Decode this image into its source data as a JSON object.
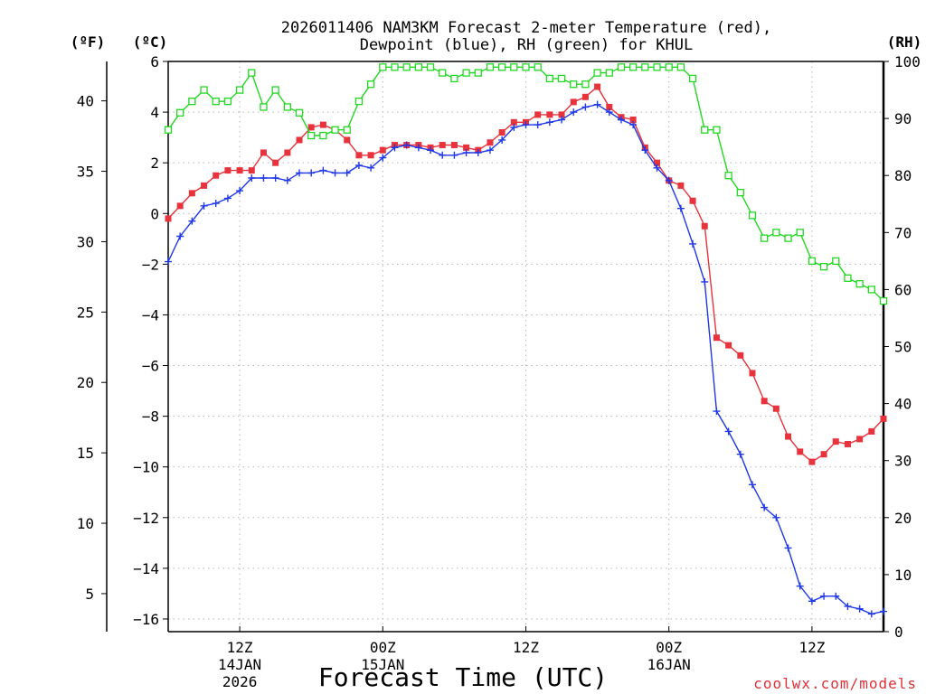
{
  "chart_data": {
    "type": "line",
    "title_line1": "2026011406 NAM3KM Forecast 2-meter Temperature (red),",
    "title_line2": "Dewpoint (blue), RH (green) for KHUL",
    "xlabel": "Forecast Time (UTC)",
    "credit": "coolwx.com/models",
    "units": {
      "fahrenheit": "(ºF)",
      "celsius": "(ºC)",
      "rh": "(RH)"
    },
    "x_range_hours": [
      0,
      60
    ],
    "x_ticks": [
      {
        "hour": 6,
        "line1": "12Z",
        "line2": "14JAN",
        "line3": "2026"
      },
      {
        "hour": 18,
        "line1": "00Z",
        "line2": "15JAN",
        "line3": ""
      },
      {
        "hour": 30,
        "line1": "12Z",
        "line2": "",
        "line3": ""
      },
      {
        "hour": 42,
        "line1": "00Z",
        "line2": "16JAN",
        "line3": ""
      },
      {
        "hour": 54,
        "line1": "12Z",
        "line2": "",
        "line3": ""
      }
    ],
    "y_celsius": {
      "range": [
        -16.5,
        6
      ],
      "ticks": [
        6,
        4,
        2,
        0,
        -2,
        -4,
        -6,
        -8,
        -10,
        -12,
        -14,
        -16
      ],
      "tick_labels": [
        "6",
        "4",
        "2",
        "0",
        "−2",
        "−4",
        "−6",
        "−8",
        "−10",
        "−12",
        "−14",
        "−16"
      ]
    },
    "y_fahrenheit": {
      "ticks": [
        40,
        35,
        30,
        25,
        20,
        15,
        10,
        5
      ],
      "tick_labels": [
        "40",
        "35",
        "30",
        "25",
        "20",
        "15",
        "10",
        "5"
      ]
    },
    "y_rh": {
      "range": [
        0,
        100
      ],
      "ticks": [
        100,
        90,
        80,
        70,
        60,
        50,
        40,
        30,
        20,
        10,
        0
      ],
      "tick_labels": [
        "100",
        "90",
        "80",
        "70",
        "60",
        "50",
        "40",
        "30",
        "20",
        "10",
        "0"
      ]
    },
    "series": [
      {
        "name": "Temperature",
        "unit": "C",
        "color": "#e8323c",
        "marker": "filled-square",
        "x": [
          0,
          1,
          2,
          3,
          4,
          5,
          6,
          7,
          8,
          9,
          10,
          11,
          12,
          13,
          14,
          15,
          16,
          17,
          18,
          19,
          20,
          21,
          22,
          23,
          24,
          25,
          26,
          27,
          28,
          29,
          30,
          31,
          32,
          33,
          34,
          35,
          36,
          37,
          38,
          39,
          40,
          41,
          42,
          43,
          44,
          45,
          46,
          47,
          48,
          49,
          50,
          51,
          52,
          53,
          54,
          55,
          56,
          57,
          58,
          59,
          60
        ],
        "values": [
          -0.2,
          0.3,
          0.8,
          1.1,
          1.5,
          1.7,
          1.7,
          1.7,
          2.4,
          2.0,
          2.4,
          2.9,
          3.4,
          3.5,
          3.3,
          2.9,
          2.3,
          2.3,
          2.5,
          2.7,
          2.7,
          2.7,
          2.6,
          2.7,
          2.7,
          2.6,
          2.5,
          2.8,
          3.2,
          3.6,
          3.6,
          3.9,
          3.9,
          3.9,
          4.4,
          4.6,
          5.0,
          4.2,
          3.8,
          3.7,
          2.6,
          2.0,
          1.3,
          1.1,
          0.5,
          -0.5,
          -4.9,
          -5.2,
          -5.6,
          -6.3,
          -7.4,
          -7.7,
          -8.8,
          -9.4,
          -9.8,
          -9.5,
          -9.0,
          -9.1,
          -8.9,
          -8.6,
          -8.1
        ]
      },
      {
        "name": "Dewpoint",
        "unit": "C",
        "color": "#2038e8",
        "marker": "plus",
        "x": [
          0,
          1,
          2,
          3,
          4,
          5,
          6,
          7,
          8,
          9,
          10,
          11,
          12,
          13,
          14,
          15,
          16,
          17,
          18,
          19,
          20,
          21,
          22,
          23,
          24,
          25,
          26,
          27,
          28,
          29,
          30,
          31,
          32,
          33,
          34,
          35,
          36,
          37,
          38,
          39,
          40,
          41,
          42,
          43,
          44,
          45,
          46,
          47,
          48,
          49,
          50,
          51,
          52,
          53,
          54,
          55,
          56,
          57,
          58,
          59,
          60
        ],
        "values": [
          -1.9,
          -0.9,
          -0.3,
          0.3,
          0.4,
          0.6,
          0.9,
          1.4,
          1.4,
          1.4,
          1.3,
          1.6,
          1.6,
          1.7,
          1.6,
          1.6,
          1.9,
          1.8,
          2.2,
          2.6,
          2.7,
          2.6,
          2.5,
          2.3,
          2.3,
          2.4,
          2.4,
          2.5,
          2.9,
          3.4,
          3.5,
          3.5,
          3.6,
          3.7,
          4.0,
          4.2,
          4.3,
          4.0,
          3.7,
          3.5,
          2.5,
          1.8,
          1.3,
          0.2,
          -1.2,
          -2.7,
          -7.8,
          -8.6,
          -9.5,
          -10.7,
          -11.6,
          -12.0,
          -13.2,
          -14.7,
          -15.3,
          -15.1,
          -15.1,
          -15.5,
          -15.6,
          -15.8,
          -15.7
        ]
      },
      {
        "name": "Relative Humidity",
        "unit": "%",
        "color": "#22d822",
        "marker": "open-square",
        "x": [
          0,
          1,
          2,
          3,
          4,
          5,
          6,
          7,
          8,
          9,
          10,
          11,
          12,
          13,
          14,
          15,
          16,
          17,
          18,
          19,
          20,
          21,
          22,
          23,
          24,
          25,
          26,
          27,
          28,
          29,
          30,
          31,
          32,
          33,
          34,
          35,
          36,
          37,
          38,
          39,
          40,
          41,
          42,
          43,
          44,
          45,
          46,
          47,
          48,
          49,
          50,
          51,
          52,
          53,
          54,
          55,
          56,
          57,
          58,
          59,
          60
        ],
        "values": [
          88,
          91,
          93,
          95,
          93,
          93,
          95,
          98,
          92,
          95,
          92,
          91,
          87,
          87,
          88,
          88,
          93,
          96,
          99,
          99,
          99,
          99,
          99,
          98,
          97,
          98,
          98,
          99,
          99,
          99,
          99,
          99,
          97,
          97,
          96,
          96,
          98,
          98,
          99,
          99,
          99,
          99,
          99,
          99,
          97,
          88,
          88,
          80,
          77,
          73,
          69,
          70,
          69,
          70,
          65,
          64,
          65,
          62,
          61,
          60,
          58
        ]
      }
    ]
  }
}
